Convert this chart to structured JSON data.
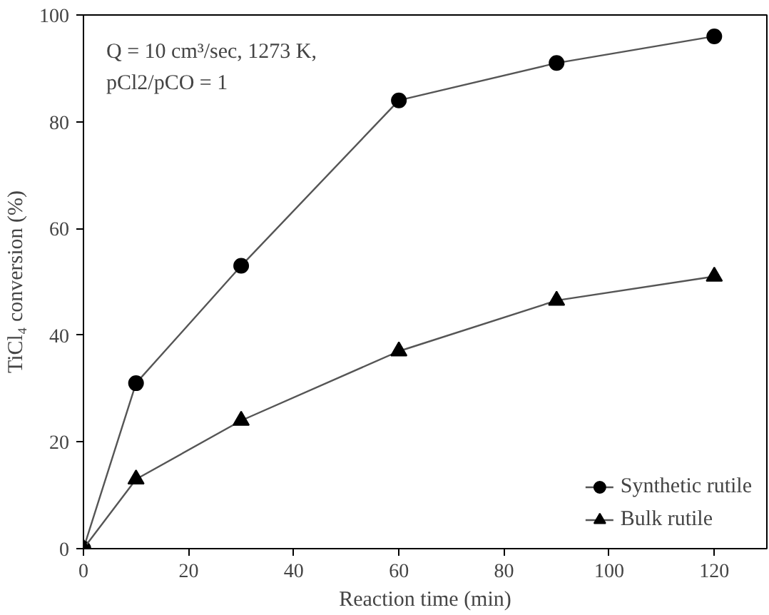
{
  "chart_data": {
    "type": "line",
    "xlabel": "Reaction time (min)",
    "ylabel": "TiCl₄ conversion (%)",
    "x": [
      0,
      10,
      30,
      60,
      90,
      120
    ],
    "series": [
      {
        "name": "Synthetic rutile",
        "color": "#000000",
        "marker": "circle",
        "values": [
          0,
          31,
          53,
          84,
          91,
          96
        ]
      },
      {
        "name": "Bulk rutile",
        "color": "#000000",
        "marker": "triangle",
        "values": [
          0,
          13,
          24,
          37,
          46.5,
          51
        ]
      }
    ],
    "xlim": [
      0,
      130
    ],
    "ylim": [
      0,
      100
    ],
    "xticks": [
      0,
      20,
      40,
      60,
      80,
      100,
      120
    ],
    "yticks": [
      0,
      20,
      40,
      60,
      80,
      100
    ],
    "grid": false,
    "legend": "bottom right",
    "annotations": [
      "Q = 10 cm³/sec, 1273 K,",
      "pCl2/pCO = 1"
    ]
  }
}
